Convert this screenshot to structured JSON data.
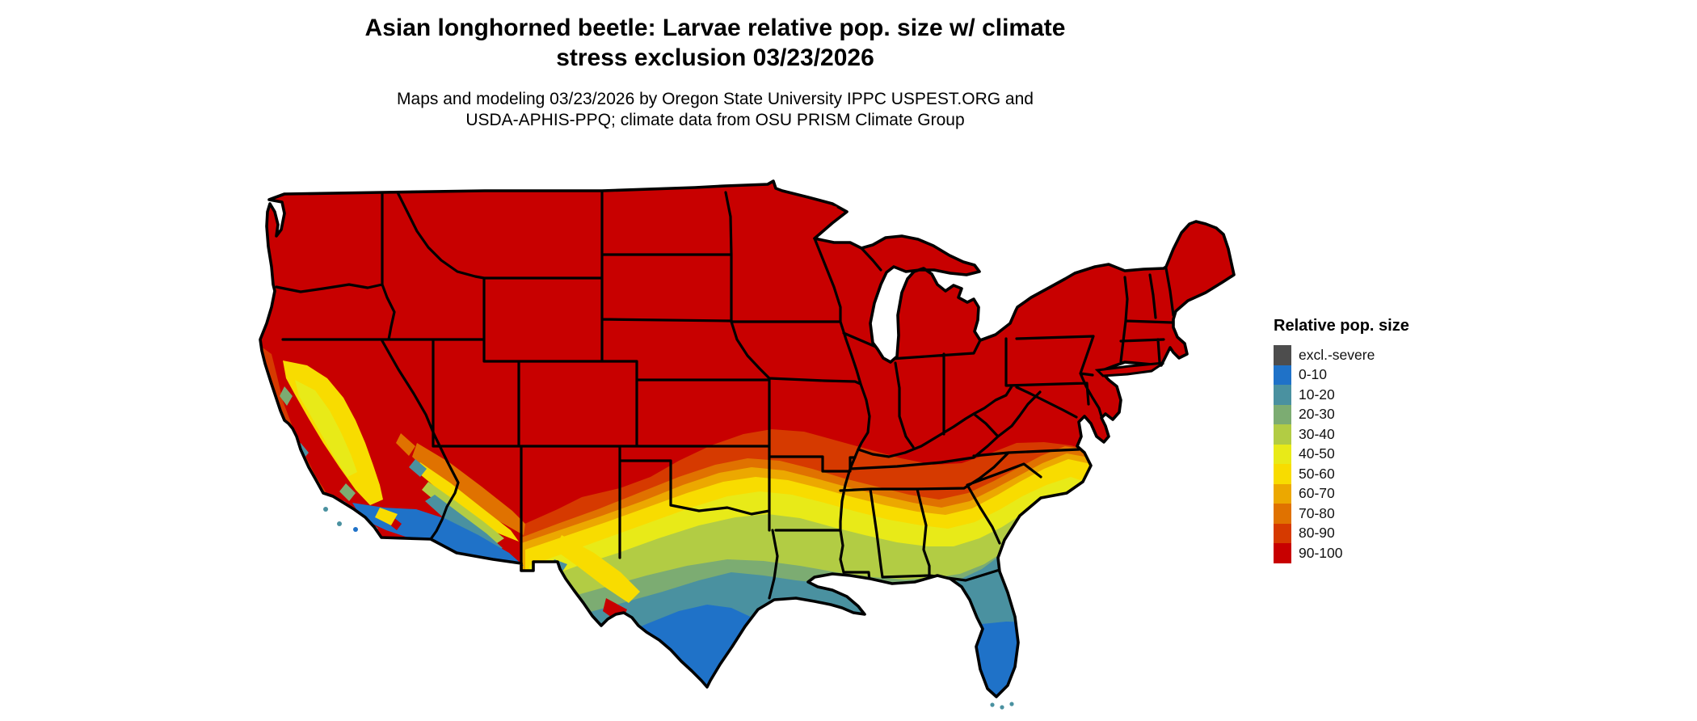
{
  "title": {
    "line1": "Asian longhorned beetle: Larvae relative pop. size w/ climate",
    "line2": "stress exclusion 03/23/2026"
  },
  "subtitle": {
    "line1": "Maps and modeling 03/23/2026 by Oregon State University IPPC USPEST.ORG and",
    "line2": "USDA-APHIS-PPQ; climate data from OSU PRISM Climate Group"
  },
  "legend": {
    "title": "Relative pop. size",
    "items": [
      {
        "label": "excl.-severe",
        "color": "#4d4d4d"
      },
      {
        "label": "0-10",
        "color": "#1f72c8"
      },
      {
        "label": "10-20",
        "color": "#4a91a0"
      },
      {
        "label": "20-30",
        "color": "#7cac72"
      },
      {
        "label": "30-40",
        "color": "#b2cc44"
      },
      {
        "label": "40-50",
        "color": "#e8ea18"
      },
      {
        "label": "50-60",
        "color": "#f8dc00"
      },
      {
        "label": "60-70",
        "color": "#eca800"
      },
      {
        "label": "70-80",
        "color": "#e07200"
      },
      {
        "label": "80-90",
        "color": "#d63a00"
      },
      {
        "label": "90-100",
        "color": "#c80000"
      }
    ]
  },
  "map": {
    "region": "Contiguous United States",
    "border_color": "#000000",
    "water_background": "#ffffff",
    "value_distribution": {
      "northern_states": "90-100",
      "mid_south_band": "80-90 to 60-70",
      "oklahoma_arkansas_carolinas": "50-60 to 40-50",
      "central_texas_deep_south": "30-40 to 20-30",
      "gulf_coast_north_florida": "10-20",
      "south_texas_south_florida_southwest_deserts": "0-10",
      "california_central_valley": "50-60 with 40-50 core",
      "california_coast": "80-90 strip",
      "southwest_arizona_southeast_california": "0-10"
    }
  }
}
